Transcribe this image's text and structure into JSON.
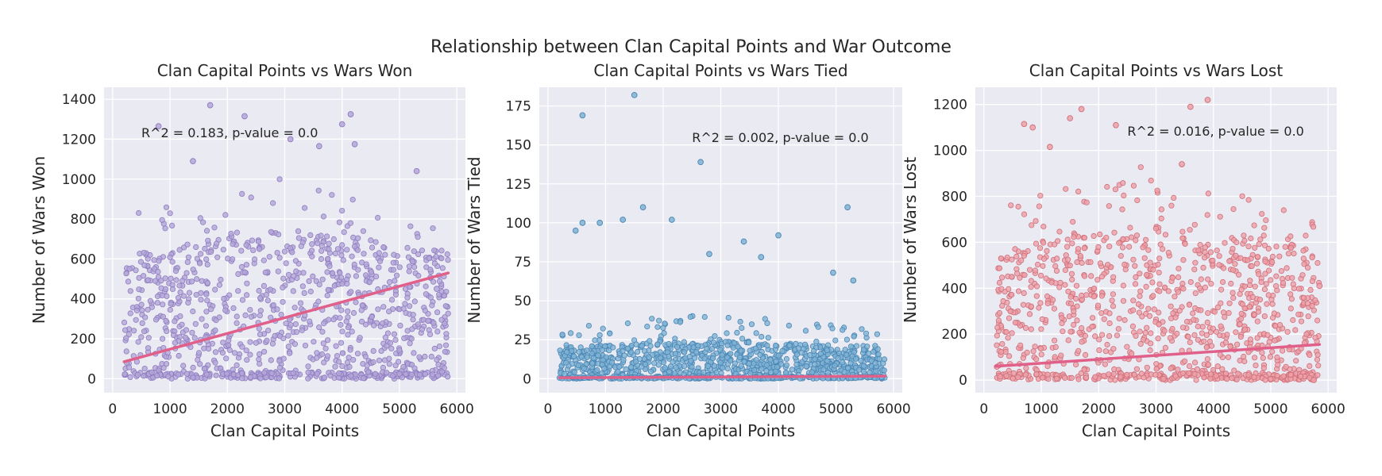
{
  "title": "Relationship between Clan Capital Points and War Outcome",
  "chart_data": [
    {
      "type": "scatter",
      "title": "Clan Capital Points vs Wars Won",
      "xlabel": "Clan Capital Points",
      "ylabel": "Number of Wars Won",
      "xlim": [
        -150,
        6150
      ],
      "ylim": [
        -70,
        1460
      ],
      "xticks": [
        0,
        1000,
        2000,
        3000,
        4000,
        5000,
        6000
      ],
      "yticks": [
        0,
        200,
        400,
        600,
        800,
        1000,
        1200,
        1400
      ],
      "annotation": "R^2 = 0.183, p-value = 0.0",
      "annotation_pos": [
        500,
        1210
      ],
      "point_color": "#b4a7d6",
      "point_edge": "#8e7cc3",
      "line_color": "#e0608a",
      "regression": {
        "x": [
          200,
          5850
        ],
        "y": [
          85,
          530
        ]
      },
      "cloud": {
        "xmin": 200,
        "xmax": 5850,
        "ymin": 0,
        "ymax": 1000,
        "dense_ymax": 690
      },
      "highlight_points": [
        {
          "x": 1700,
          "y": 1370
        },
        {
          "x": 2300,
          "y": 1315
        },
        {
          "x": 4150,
          "y": 1325
        },
        {
          "x": 4000,
          "y": 1275
        },
        {
          "x": 3100,
          "y": 1200
        },
        {
          "x": 800,
          "y": 1265
        },
        {
          "x": 4220,
          "y": 1175
        },
        {
          "x": 3600,
          "y": 1165
        },
        {
          "x": 1400,
          "y": 1090
        },
        {
          "x": 5300,
          "y": 1040
        },
        {
          "x": 5650,
          "y": 450
        },
        {
          "x": 5500,
          "y": 290
        }
      ]
    },
    {
      "type": "scatter",
      "title": "Clan Capital Points vs Wars Tied",
      "xlabel": "Clan Capital Points",
      "ylabel": "Number of Wars Tied",
      "xlim": [
        -150,
        6150
      ],
      "ylim": [
        -9,
        187
      ],
      "xticks": [
        0,
        1000,
        2000,
        3000,
        4000,
        5000,
        6000
      ],
      "yticks": [
        0,
        25,
        50,
        75,
        100,
        125,
        150,
        175
      ],
      "annotation": "R^2 = 0.002, p-value = 0.0",
      "annotation_pos": [
        2500,
        152
      ],
      "point_color": "#7fb3d5",
      "point_edge": "#4a86b4",
      "line_color": "#e0608a",
      "regression": {
        "x": [
          200,
          5850
        ],
        "y": [
          0.6,
          1.6
        ]
      },
      "cloud": {
        "xmin": 200,
        "xmax": 5850,
        "ymin": 0,
        "ymax": 40,
        "dense_ymax": 22
      },
      "highlight_points": [
        {
          "x": 1500,
          "y": 182
        },
        {
          "x": 600,
          "y": 169
        },
        {
          "x": 2650,
          "y": 139
        },
        {
          "x": 5200,
          "y": 110
        },
        {
          "x": 1650,
          "y": 110
        },
        {
          "x": 2150,
          "y": 102
        },
        {
          "x": 1300,
          "y": 102
        },
        {
          "x": 600,
          "y": 100
        },
        {
          "x": 900,
          "y": 100
        },
        {
          "x": 480,
          "y": 95
        },
        {
          "x": 4000,
          "y": 92
        },
        {
          "x": 3400,
          "y": 88
        },
        {
          "x": 2800,
          "y": 80
        },
        {
          "x": 3700,
          "y": 78
        },
        {
          "x": 5300,
          "y": 63
        },
        {
          "x": 4950,
          "y": 68
        }
      ]
    },
    {
      "type": "scatter",
      "title": "Clan Capital Points vs Wars Lost",
      "xlabel": "Clan Capital Points",
      "ylabel": "Number of Wars Lost",
      "xlim": [
        -150,
        6150
      ],
      "ylim": [
        -55,
        1275
      ],
      "xticks": [
        0,
        1000,
        2000,
        3000,
        4000,
        5000,
        6000
      ],
      "yticks": [
        0,
        200,
        400,
        600,
        800,
        1000,
        1200
      ],
      "annotation": "R^2 = 0.016, p-value = 0.0",
      "annotation_pos": [
        2500,
        1065
      ],
      "point_color": "#eda0a8",
      "point_edge": "#cf6f7a",
      "line_color": "#e0608a",
      "regression": {
        "x": [
          200,
          5850
        ],
        "y": [
          60,
          155
        ]
      },
      "cloud": {
        "xmin": 200,
        "xmax": 5850,
        "ymin": 0,
        "ymax": 900,
        "dense_ymax": 620
      },
      "highlight_points": [
        {
          "x": 3900,
          "y": 1220
        },
        {
          "x": 3600,
          "y": 1190
        },
        {
          "x": 1700,
          "y": 1180
        },
        {
          "x": 1500,
          "y": 1140
        },
        {
          "x": 700,
          "y": 1115
        },
        {
          "x": 2300,
          "y": 1110
        },
        {
          "x": 850,
          "y": 1100
        },
        {
          "x": 1150,
          "y": 1015
        },
        {
          "x": 3450,
          "y": 940
        },
        {
          "x": 5850,
          "y": 410
        },
        {
          "x": 5750,
          "y": 0
        }
      ]
    }
  ]
}
